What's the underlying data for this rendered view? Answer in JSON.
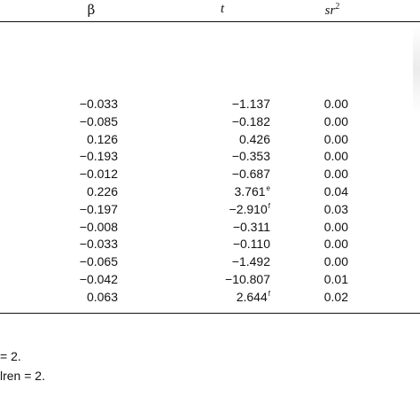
{
  "headers": {
    "beta": "β",
    "t": "t",
    "sr": "sr",
    "sr_power": "2"
  },
  "rows": [
    {
      "beta": "−0.033",
      "t": "−1.137",
      "t_sup": "",
      "sr2": "0.00"
    },
    {
      "beta": "−0.085",
      "t": "−0.182",
      "t_sup": "",
      "sr2": "0.00"
    },
    {
      "beta": "0.126",
      "t": "0.426",
      "t_sup": "",
      "sr2": "0.00"
    },
    {
      "beta": "−0.193",
      "t": "−0.353",
      "t_sup": "",
      "sr2": "0.00"
    },
    {
      "beta": "−0.012",
      "t": "−0.687",
      "t_sup": "",
      "sr2": "0.00"
    },
    {
      "beta": "0.226",
      "t": "3.761",
      "t_sup": "e",
      "sr2": "0.04"
    },
    {
      "beta": "−0.197",
      "t": "−2.910",
      "t_sup": "f",
      "sr2": "0.03"
    },
    {
      "beta": "−0.008",
      "t": "−0.311",
      "t_sup": "",
      "sr2": "0.00"
    },
    {
      "beta": "−0.033",
      "t": "−0.110",
      "t_sup": "",
      "sr2": "0.00"
    },
    {
      "beta": "−0.065",
      "t": "−1.492",
      "t_sup": "",
      "sr2": "0.00"
    },
    {
      "beta": "−0.042",
      "t": "−10.807",
      "t_sup": "",
      "sr2": "0.01"
    },
    {
      "beta": "0.063",
      "t": "2.644",
      "t_sup": "f",
      "sr2": "0.02"
    }
  ],
  "notes": [
    "= 2.",
    "lren = 2."
  ]
}
